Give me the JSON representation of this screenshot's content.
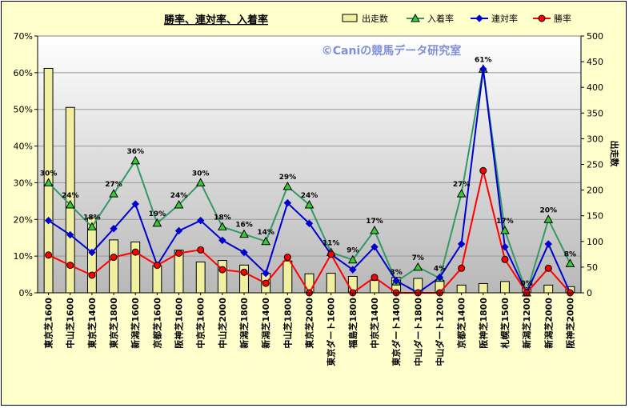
{
  "chart_data": {
    "type": "bar+line",
    "title": "勝率、連対率、入着率",
    "watermark": "©Caniの競馬データ研究室",
    "categories": [
      "東京芝1600",
      "中山芝1600",
      "東京芝1400",
      "東京芝1800",
      "新潟芝1600",
      "京都芝1600",
      "阪神芝1600",
      "中京芝1600",
      "中山芝2000",
      "新潟芝1800",
      "新潟芝1400",
      "中山芝1800",
      "東京芝2000",
      "東京ダート1600",
      "福島芝1800",
      "中京芝1400",
      "東京ダート1400",
      "中山ダート1800",
      "中山ダート1200",
      "京都芝1400",
      "阪神芝1800",
      "札幌芝1500",
      "新潟芝1200",
      "新潟芝2000",
      "阪神芝2000"
    ],
    "y_left": {
      "ticks": [
        "0%",
        "10%",
        "20%",
        "30%",
        "40%",
        "50%",
        "60%",
        "70%"
      ],
      "min": 0,
      "max": 70
    },
    "y_right": {
      "label": "出走数",
      "ticks": [
        "0",
        "50",
        "100",
        "150",
        "200",
        "250",
        "300",
        "350",
        "400",
        "450",
        "500"
      ],
      "min": 0,
      "max": 500
    },
    "bar_series": {
      "name": "出走数",
      "color": "#f0f0a0",
      "values": [
        437,
        361,
        146,
        103,
        99,
        53,
        83,
        60,
        63,
        54,
        38,
        62,
        37,
        38,
        32,
        24,
        30,
        28,
        24,
        15,
        18,
        22,
        10,
        15,
        12
      ]
    },
    "line_series": [
      {
        "name": "入着率",
        "color": "#339966",
        "marker": "triangle",
        "values": [
          30,
          24,
          18,
          27,
          36,
          19,
          24,
          30,
          18,
          16,
          14,
          29,
          24,
          11,
          9,
          17,
          3,
          7,
          4,
          27,
          61,
          17,
          0,
          20,
          8
        ]
      },
      {
        "name": "連対率",
        "color": "#0000cc",
        "marker": "diamond",
        "values": [
          19.7,
          15.8,
          11,
          17.5,
          24.2,
          7.5,
          16.9,
          19.7,
          14.3,
          11,
          5.3,
          24.5,
          18.9,
          10.5,
          6.3,
          12.5,
          3.3,
          0,
          4.2,
          13.3,
          61,
          12.5,
          0,
          13.3,
          0
        ]
      },
      {
        "name": "勝率",
        "color": "#ff0000",
        "marker": "circle",
        "values": [
          10.3,
          7.5,
          4.8,
          9.7,
          11.1,
          7.5,
          10.8,
          11.7,
          6.3,
          5.6,
          2.6,
          9.7,
          0,
          10.5,
          0,
          4.2,
          0,
          0,
          0,
          6.7,
          33.3,
          9.1,
          0,
          6.7,
          0
        ]
      }
    ],
    "data_labels": [
      "30%",
      "24%",
      "18%",
      "27%",
      "36%",
      "19%",
      "24%",
      "30%",
      "18%",
      "16%",
      "14%",
      "29%",
      "24%",
      "11%",
      "9%",
      "17%",
      "3%",
      "7%",
      "4%",
      "27%",
      "61%",
      "17%",
      "0%",
      "20%",
      "8%"
    ],
    "legend": {
      "position": "top-right",
      "entries": [
        "出走数",
        "入着率",
        "連対率",
        "勝率"
      ]
    },
    "grid": true
  }
}
